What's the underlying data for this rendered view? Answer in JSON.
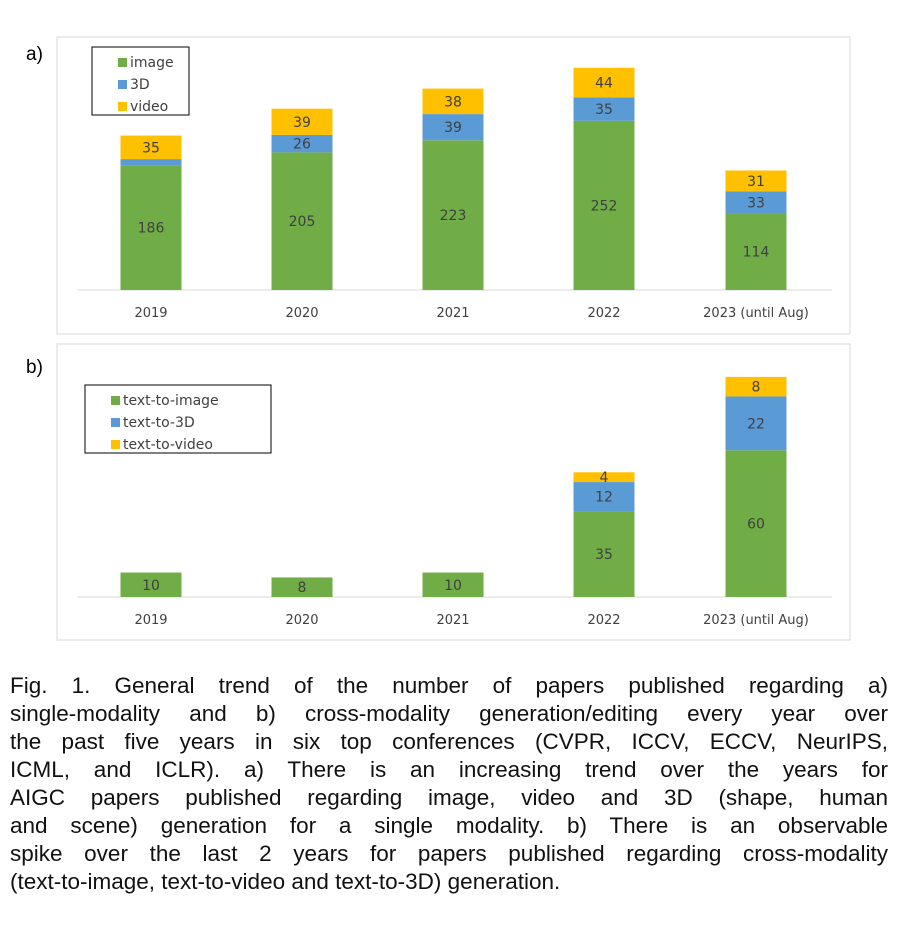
{
  "panels": {
    "a": {
      "label": "a)"
    },
    "b": {
      "label": "b)"
    }
  },
  "chart_data": [
    {
      "type": "bar",
      "stacked": true,
      "categories": [
        "2019",
        "2020",
        "2021",
        "2022",
        "2023 (until Aug)"
      ],
      "series": [
        {
          "name": "image",
          "values": [
            186,
            205,
            223,
            252,
            114
          ],
          "color": "#70ad47",
          "labels": [
            "186",
            "205",
            "223",
            "252",
            "114"
          ]
        },
        {
          "name": "3D",
          "values": [
            9,
            26,
            39,
            35,
            33
          ],
          "color": "#5b9bd5",
          "labels": [
            "",
            "26",
            "39",
            "35",
            "33"
          ]
        },
        {
          "name": "video",
          "values": [
            35,
            39,
            38,
            44,
            31
          ],
          "color": "#ffc000",
          "labels": [
            "35",
            "39",
            "38",
            "44",
            "31"
          ]
        }
      ],
      "ylim": [
        0,
        350
      ],
      "legend_position": "top-left",
      "grid": false
    },
    {
      "type": "bar",
      "stacked": true,
      "categories": [
        "2019",
        "2020",
        "2021",
        "2022",
        "2023 (until Aug)"
      ],
      "series": [
        {
          "name": "text-to-image",
          "values": [
            10,
            8,
            10,
            35,
            60
          ],
          "color": "#70ad47",
          "labels": [
            "10",
            "8",
            "10",
            "35",
            "60"
          ]
        },
        {
          "name": "text-to-3D",
          "values": [
            0,
            0,
            0,
            12,
            22
          ],
          "color": "#5b9bd5",
          "labels": [
            "",
            "",
            "",
            "12",
            "22"
          ]
        },
        {
          "name": "text-to-video",
          "values": [
            0,
            0,
            0,
            4,
            8
          ],
          "color": "#ffc000",
          "labels": [
            "",
            "",
            "",
            "4",
            "8"
          ]
        }
      ],
      "ylim": [
        0,
        92
      ],
      "legend_position": "top-left",
      "grid": false
    }
  ],
  "caption": {
    "lines": [
      "Fig. 1.  General trend of the number of papers published regarding a)",
      "single-modality and b) cross-modality generation/editing every year over",
      "the past five years in six top conferences (CVPR, ICCV, ECCV, NeurIPS,",
      "ICML, and ICLR). a) There is an increasing trend over the years for",
      "AIGC papers published regarding image, video and 3D (shape, human",
      "and scene) generation for a single modality. b) There is an observable",
      "spike over the last 2 years for papers published regarding cross-modality",
      "(text-to-image, text-to-video and text-to-3D) generation."
    ]
  }
}
